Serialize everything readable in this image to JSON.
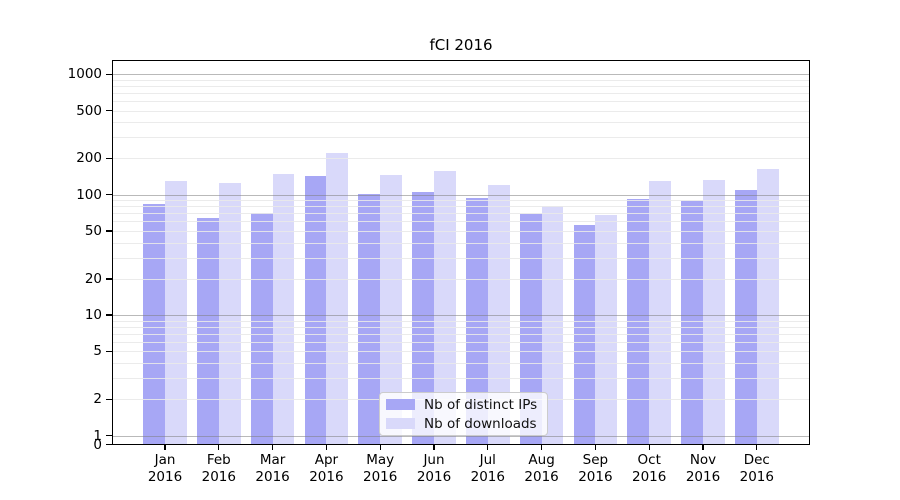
{
  "chart_data": {
    "type": "bar",
    "title": "fCI 2016",
    "xlabel": "",
    "ylabel": "",
    "y_axis": {
      "scale": "symlog",
      "tick_values": [
        1000,
        500,
        200,
        100,
        50,
        20,
        10,
        5,
        2,
        1,
        0
      ],
      "tick_labels": [
        "1000",
        "500",
        "200",
        "100",
        "50",
        "20",
        "10",
        "5",
        "2",
        "1",
        "0"
      ],
      "range": [
        0,
        1280
      ]
    },
    "grid": "on",
    "legend_position": "lower center",
    "categories": [
      {
        "month": "Jan",
        "year": "2016"
      },
      {
        "month": "Feb",
        "year": "2016"
      },
      {
        "month": "Mar",
        "year": "2016"
      },
      {
        "month": "Apr",
        "year": "2016"
      },
      {
        "month": "May",
        "year": "2016"
      },
      {
        "month": "Jun",
        "year": "2016"
      },
      {
        "month": "Jul",
        "year": "2016"
      },
      {
        "month": "Aug",
        "year": "2016"
      },
      {
        "month": "Sep",
        "year": "2016"
      },
      {
        "month": "Oct",
        "year": "2016"
      },
      {
        "month": "Nov",
        "year": "2016"
      },
      {
        "month": "Dec",
        "year": "2016"
      }
    ],
    "series": [
      {
        "name": "Nb of distinct IPs",
        "color": "#a7a7f5",
        "values": [
          83,
          64,
          70,
          144,
          102,
          105,
          94,
          69,
          56,
          92,
          89,
          109
        ]
      },
      {
        "name": "Nb of downloads",
        "color": "#d9d9fa",
        "values": [
          130,
          125,
          148,
          222,
          145,
          157,
          120,
          81,
          68,
          129,
          132,
          164
        ]
      }
    ]
  }
}
